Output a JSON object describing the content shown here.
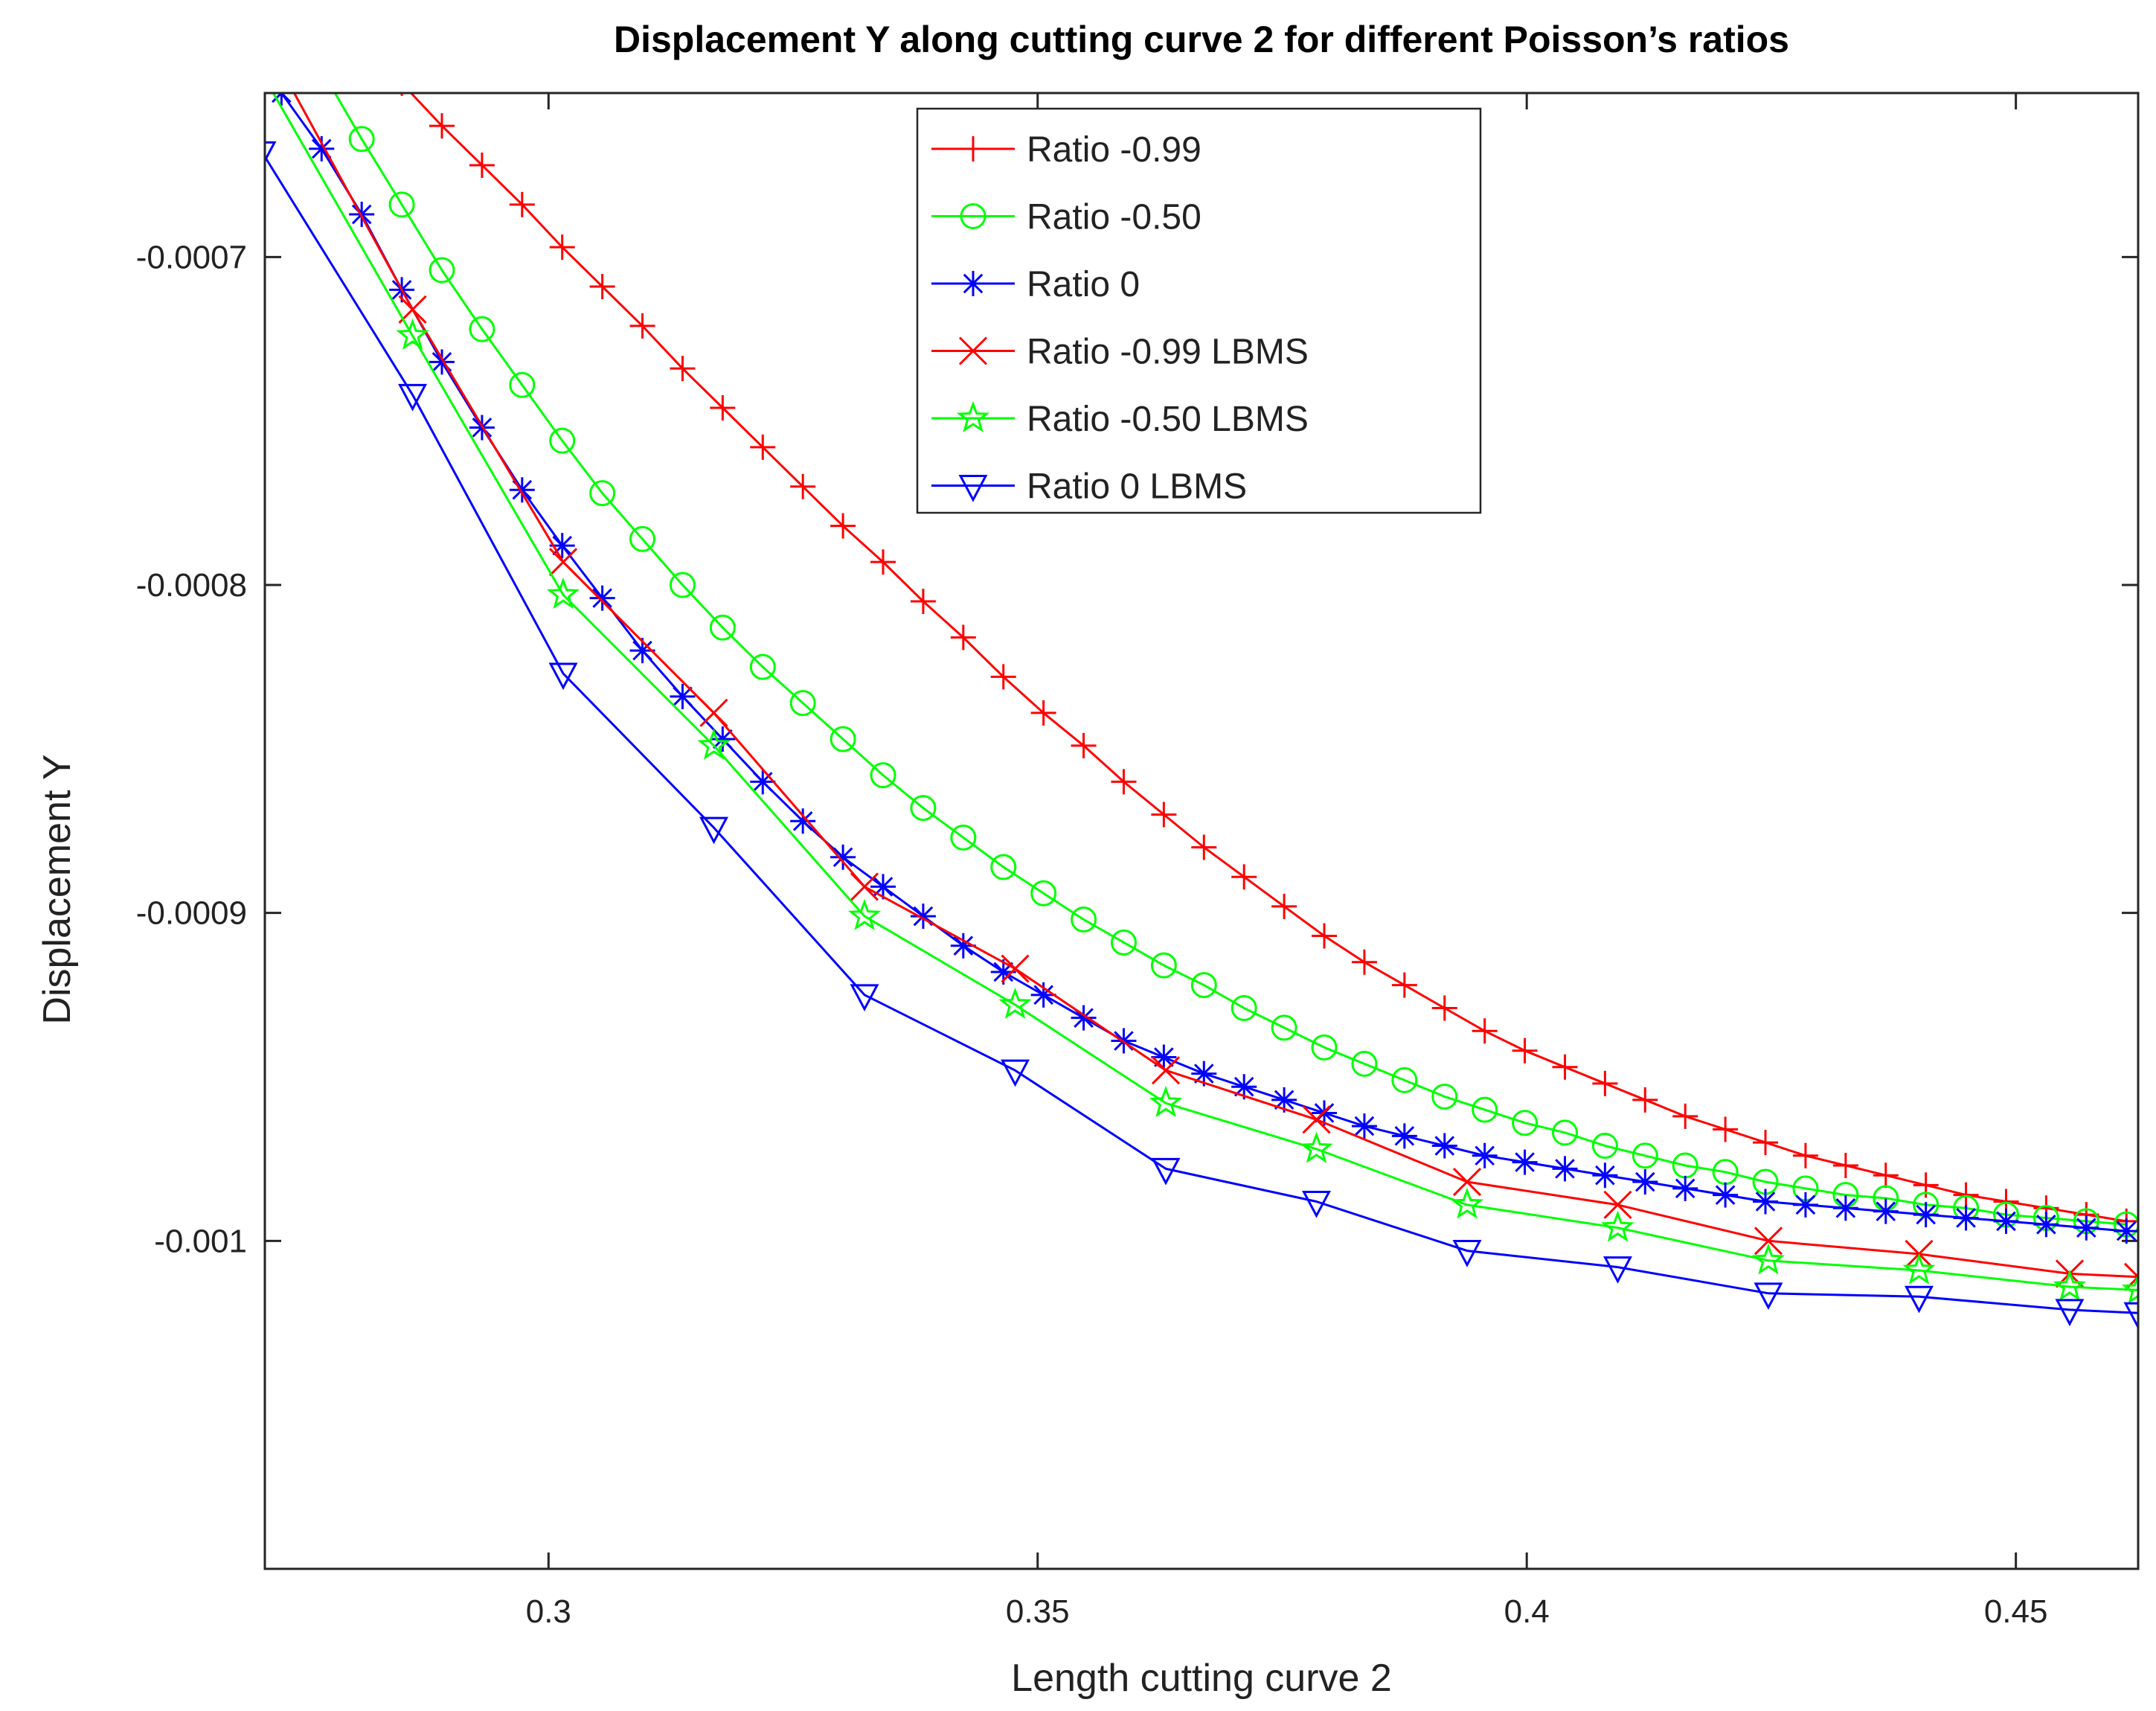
{
  "chart_data": {
    "type": "line",
    "title": "Displacement Y along cutting curve 2 for different Poisson’s ratios",
    "xlabel": "Length cutting curve 2",
    "ylabel": "Displacement Y",
    "xlim": [
      0.271,
      0.4625
    ],
    "ylim": [
      -0.0011,
      -0.00065
    ],
    "x_ticks": [
      0.3,
      0.35,
      0.4,
      0.45
    ],
    "x_tick_labels": [
      "0.3",
      "0.35",
      "0.4",
      "0.45"
    ],
    "y_ticks": [
      -0.0007,
      -0.0008,
      -0.0009,
      -0.001
    ],
    "y_tick_labels": [
      "-0.0007",
      "-0.0008",
      "-0.0009",
      "-0.001"
    ],
    "grid": false,
    "legend_position": "top-center",
    "series": [
      {
        "name": "Ratio -0.99",
        "color": "#ff0000",
        "marker": "plus",
        "x": [
          0.2727,
          0.2768,
          0.2809,
          0.285,
          0.2891,
          0.2932,
          0.2973,
          0.3014,
          0.3055,
          0.3096,
          0.3137,
          0.3178,
          0.3219,
          0.326,
          0.3301,
          0.3342,
          0.3383,
          0.3424,
          0.3465,
          0.3506,
          0.3547,
          0.3588,
          0.3629,
          0.367,
          0.3711,
          0.3752,
          0.3793,
          0.3834,
          0.3875,
          0.3916,
          0.3957,
          0.3998,
          0.4039,
          0.408,
          0.4121,
          0.4162,
          0.4203,
          0.4244,
          0.4285,
          0.4326,
          0.4367,
          0.4408,
          0.4449,
          0.449,
          0.4531,
          0.4572,
          0.4613
        ],
        "values": [
          -0.000609,
          -0.000622,
          -0.000635,
          -0.000647,
          -0.00066,
          -0.000672,
          -0.000684,
          -0.000697,
          -0.000709,
          -0.000721,
          -0.000734,
          -0.000746,
          -0.000758,
          -0.00077,
          -0.000782,
          -0.000793,
          -0.000805,
          -0.000816,
          -0.000828,
          -0.000839,
          -0.000849,
          -0.00086,
          -0.00087,
          -0.00088,
          -0.000889,
          -0.000898,
          -0.000907,
          -0.000915,
          -0.000922,
          -0.000929,
          -0.000936,
          -0.000942,
          -0.000947,
          -0.000952,
          -0.000957,
          -0.000962,
          -0.000966,
          -0.00097,
          -0.000974,
          -0.000977,
          -0.00098,
          -0.000983,
          -0.000986,
          -0.000988,
          -0.00099,
          -0.000992,
          -0.000994
        ]
      },
      {
        "name": "Ratio -0.50",
        "color": "#00ff00",
        "marker": "circle",
        "x": [
          0.2727,
          0.2768,
          0.2809,
          0.285,
          0.2891,
          0.2932,
          0.2973,
          0.3014,
          0.3055,
          0.3096,
          0.3137,
          0.3178,
          0.3219,
          0.326,
          0.3301,
          0.3342,
          0.3383,
          0.3424,
          0.3465,
          0.3506,
          0.3547,
          0.3588,
          0.3629,
          0.367,
          0.3711,
          0.3752,
          0.3793,
          0.3834,
          0.3875,
          0.3916,
          0.3957,
          0.3998,
          0.4039,
          0.408,
          0.4121,
          0.4162,
          0.4203,
          0.4244,
          0.4285,
          0.4326,
          0.4367,
          0.4408,
          0.4449,
          0.449,
          0.4531,
          0.4572,
          0.4613
        ],
        "values": [
          -0.000627,
          -0.000643,
          -0.000664,
          -0.000684,
          -0.000704,
          -0.000722,
          -0.000739,
          -0.000756,
          -0.000772,
          -0.000786,
          -0.0008,
          -0.000813,
          -0.000825,
          -0.000836,
          -0.000847,
          -0.000858,
          -0.000868,
          -0.000877,
          -0.000886,
          -0.000894,
          -0.000902,
          -0.000909,
          -0.000916,
          -0.000922,
          -0.000929,
          -0.000935,
          -0.000941,
          -0.000946,
          -0.000951,
          -0.000956,
          -0.00096,
          -0.000964,
          -0.000967,
          -0.000971,
          -0.000974,
          -0.000977,
          -0.000979,
          -0.000982,
          -0.000984,
          -0.000986,
          -0.000987,
          -0.000989,
          -0.00099,
          -0.000992,
          -0.000993,
          -0.000994,
          -0.000995
        ]
      },
      {
        "name": "Ratio 0",
        "color": "#0000ff",
        "marker": "asterisk",
        "x": [
          0.2727,
          0.2768,
          0.2809,
          0.285,
          0.2891,
          0.2932,
          0.2973,
          0.3014,
          0.3055,
          0.3096,
          0.3137,
          0.3178,
          0.3219,
          0.326,
          0.3301,
          0.3342,
          0.3383,
          0.3424,
          0.3465,
          0.3506,
          0.3547,
          0.3588,
          0.3629,
          0.367,
          0.3711,
          0.3752,
          0.3793,
          0.3834,
          0.3875,
          0.3916,
          0.3957,
          0.3998,
          0.4039,
          0.408,
          0.4121,
          0.4162,
          0.4203,
          0.4244,
          0.4285,
          0.4326,
          0.4367,
          0.4408,
          0.4449,
          0.449,
          0.4531,
          0.4572,
          0.4613
        ],
        "values": [
          -0.00065,
          -0.000667,
          -0.000687,
          -0.00071,
          -0.000732,
          -0.000752,
          -0.000771,
          -0.000788,
          -0.000804,
          -0.00082,
          -0.000834,
          -0.000847,
          -0.00086,
          -0.000872,
          -0.000883,
          -0.000892,
          -0.000901,
          -0.00091,
          -0.000918,
          -0.000925,
          -0.000932,
          -0.000939,
          -0.000944,
          -0.000949,
          -0.000953,
          -0.000957,
          -0.000961,
          -0.000965,
          -0.000968,
          -0.000971,
          -0.000974,
          -0.000976,
          -0.000978,
          -0.00098,
          -0.000982,
          -0.000984,
          -0.000986,
          -0.000988,
          -0.000989,
          -0.00099,
          -0.000991,
          -0.000992,
          -0.000993,
          -0.000994,
          -0.000995,
          -0.000996,
          -0.000997
        ]
      },
      {
        "name": "Ratio -0.99 LBMS",
        "color": "#ff0000",
        "marker": "x",
        "x": [
          0.2707,
          0.2861,
          0.3015,
          0.3169,
          0.3323,
          0.3477,
          0.3631,
          0.3785,
          0.3939,
          0.4093,
          0.4247,
          0.4401,
          0.4555,
          0.4625
        ],
        "values": [
          -0.000632,
          -0.000716,
          -0.000793,
          -0.000839,
          -0.000892,
          -0.000917,
          -0.000948,
          -0.000963,
          -0.000982,
          -0.000989,
          -0.001,
          -0.001004,
          -0.00101,
          -0.001011
        ]
      },
      {
        "name": "Ratio -0.50 LBMS",
        "color": "#00ff00",
        "marker": "star",
        "x": [
          0.2707,
          0.2861,
          0.3015,
          0.3169,
          0.3323,
          0.3477,
          0.3631,
          0.3785,
          0.3939,
          0.4093,
          0.4247,
          0.4401,
          0.4555,
          0.4625
        ],
        "values": [
          -0.000644,
          -0.000724,
          -0.000803,
          -0.000849,
          -0.000901,
          -0.000928,
          -0.000958,
          -0.000972,
          -0.000989,
          -0.000996,
          -0.001006,
          -0.001009,
          -0.001014,
          -0.001015
        ]
      },
      {
        "name": "Ratio 0 LBMS",
        "color": "#0000ff",
        "marker": "triangle-down",
        "x": [
          0.2707,
          0.2861,
          0.3015,
          0.3169,
          0.3323,
          0.3477,
          0.3631,
          0.3785,
          0.3939,
          0.4093,
          0.4247,
          0.4401,
          0.4555,
          0.4625
        ],
        "values": [
          -0.000668,
          -0.000742,
          -0.000827,
          -0.000874,
          -0.000925,
          -0.000948,
          -0.000978,
          -0.000988,
          -0.001003,
          -0.001008,
          -0.001016,
          -0.001017,
          -0.001021,
          -0.001022
        ]
      }
    ]
  }
}
